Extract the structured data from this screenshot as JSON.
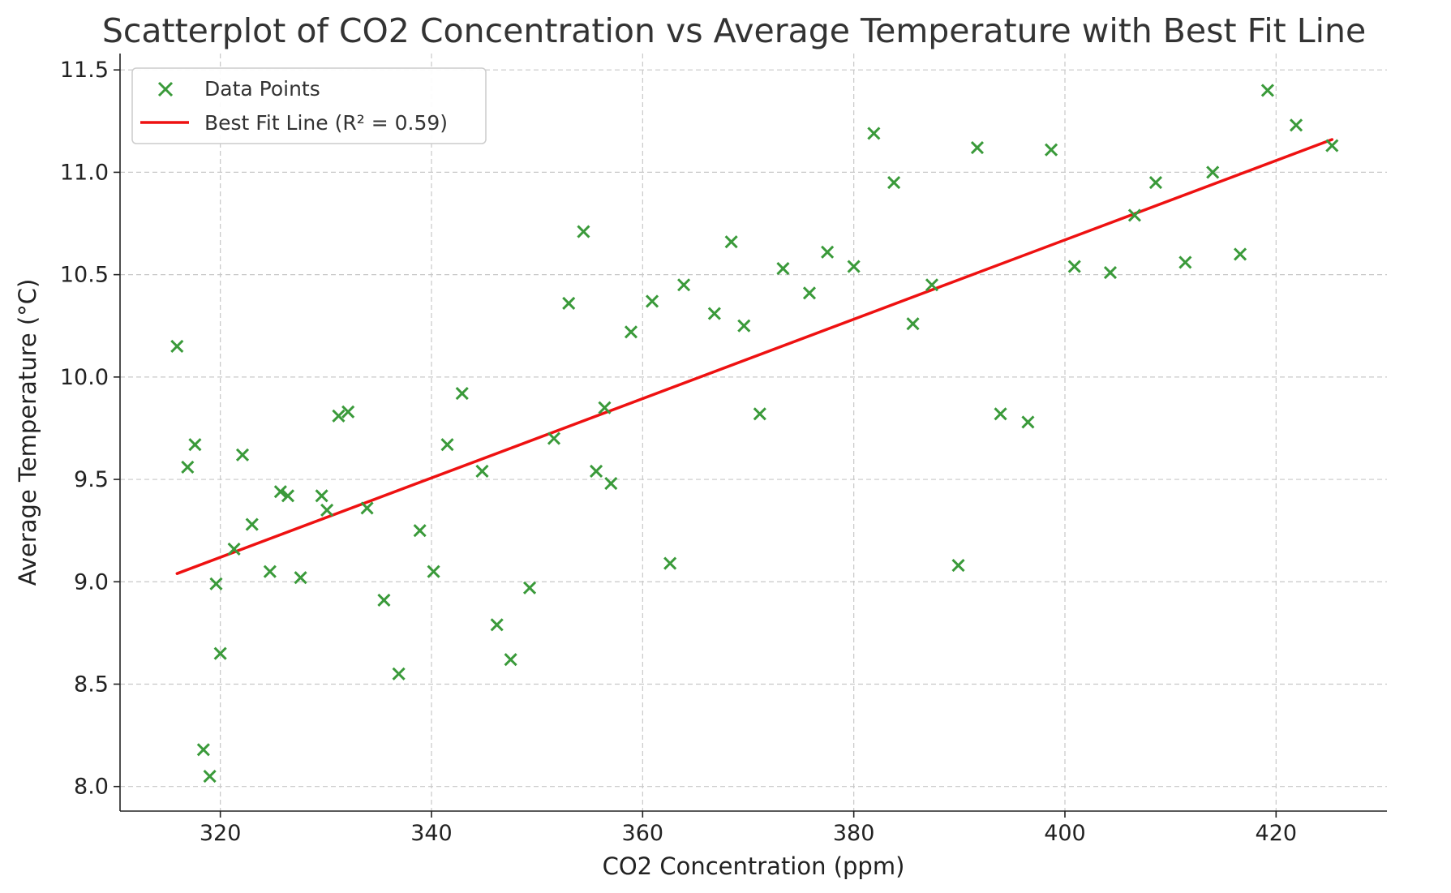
{
  "chart_data": {
    "type": "scatter",
    "title": "Scatterplot of CO2 Concentration vs Average Temperature with Best Fit Line",
    "xlabel": "CO2 Concentration (ppm)",
    "ylabel": "Average Temperature (°C)",
    "xlim": [
      310.5,
      430.5
    ],
    "ylim": [
      7.88,
      11.58
    ],
    "xticks": [
      320,
      340,
      360,
      380,
      400,
      420
    ],
    "yticks": [
      8.0,
      8.5,
      9.0,
      9.5,
      10.0,
      10.5,
      11.0,
      11.5
    ],
    "xtick_labels": [
      "320",
      "340",
      "360",
      "380",
      "400",
      "420"
    ],
    "ytick_labels": [
      "8.0",
      "8.5",
      "9.0",
      "9.5",
      "10.0",
      "10.5",
      "11.0",
      "11.5"
    ],
    "grid": true,
    "legend_position": "top-left",
    "series": [
      {
        "name": "Data Points",
        "kind": "scatter",
        "marker": "x",
        "color": "#3a9a3a",
        "points": [
          [
            315.9,
            10.15
          ],
          [
            316.9,
            9.56
          ],
          [
            317.6,
            9.67
          ],
          [
            318.4,
            8.18
          ],
          [
            319.0,
            8.05
          ],
          [
            319.6,
            8.99
          ],
          [
            320.0,
            8.65
          ],
          [
            321.3,
            9.16
          ],
          [
            322.1,
            9.62
          ],
          [
            323.0,
            9.28
          ],
          [
            324.7,
            9.05
          ],
          [
            325.7,
            9.44
          ],
          [
            326.4,
            9.42
          ],
          [
            327.6,
            9.02
          ],
          [
            329.6,
            9.42
          ],
          [
            330.1,
            9.35
          ],
          [
            331.2,
            9.81
          ],
          [
            332.1,
            9.83
          ],
          [
            333.9,
            9.36
          ],
          [
            335.5,
            8.91
          ],
          [
            336.9,
            8.55
          ],
          [
            338.9,
            9.25
          ],
          [
            340.2,
            9.05
          ],
          [
            341.5,
            9.67
          ],
          [
            342.9,
            9.92
          ],
          [
            344.8,
            9.54
          ],
          [
            346.2,
            8.79
          ],
          [
            347.5,
            8.62
          ],
          [
            349.3,
            8.97
          ],
          [
            351.6,
            9.7
          ],
          [
            353.0,
            10.36
          ],
          [
            354.4,
            10.71
          ],
          [
            355.6,
            9.54
          ],
          [
            356.4,
            9.85
          ],
          [
            357.0,
            9.48
          ],
          [
            358.9,
            10.22
          ],
          [
            360.9,
            10.37
          ],
          [
            362.6,
            9.09
          ],
          [
            363.9,
            10.45
          ],
          [
            366.8,
            10.31
          ],
          [
            368.4,
            10.66
          ],
          [
            369.6,
            10.25
          ],
          [
            371.1,
            9.82
          ],
          [
            373.3,
            10.53
          ],
          [
            375.8,
            10.41
          ],
          [
            377.5,
            10.61
          ],
          [
            380.0,
            10.54
          ],
          [
            381.9,
            11.19
          ],
          [
            383.8,
            10.95
          ],
          [
            385.6,
            10.26
          ],
          [
            387.4,
            10.45
          ],
          [
            389.9,
            9.08
          ],
          [
            391.7,
            11.12
          ],
          [
            393.9,
            9.82
          ],
          [
            396.5,
            9.78
          ],
          [
            398.7,
            11.11
          ],
          [
            400.9,
            10.54
          ],
          [
            404.3,
            10.51
          ],
          [
            406.6,
            10.79
          ],
          [
            408.6,
            10.95
          ],
          [
            411.4,
            10.56
          ],
          [
            414.0,
            11.0
          ],
          [
            416.6,
            10.6
          ],
          [
            419.2,
            11.4
          ],
          [
            421.9,
            11.23
          ],
          [
            425.3,
            11.13
          ]
        ]
      },
      {
        "name": "Best Fit Line (R² = 0.59)",
        "kind": "line",
        "color": "#ee1111",
        "points": [
          [
            315.9,
            9.04
          ],
          [
            425.3,
            11.16
          ]
        ]
      }
    ]
  }
}
